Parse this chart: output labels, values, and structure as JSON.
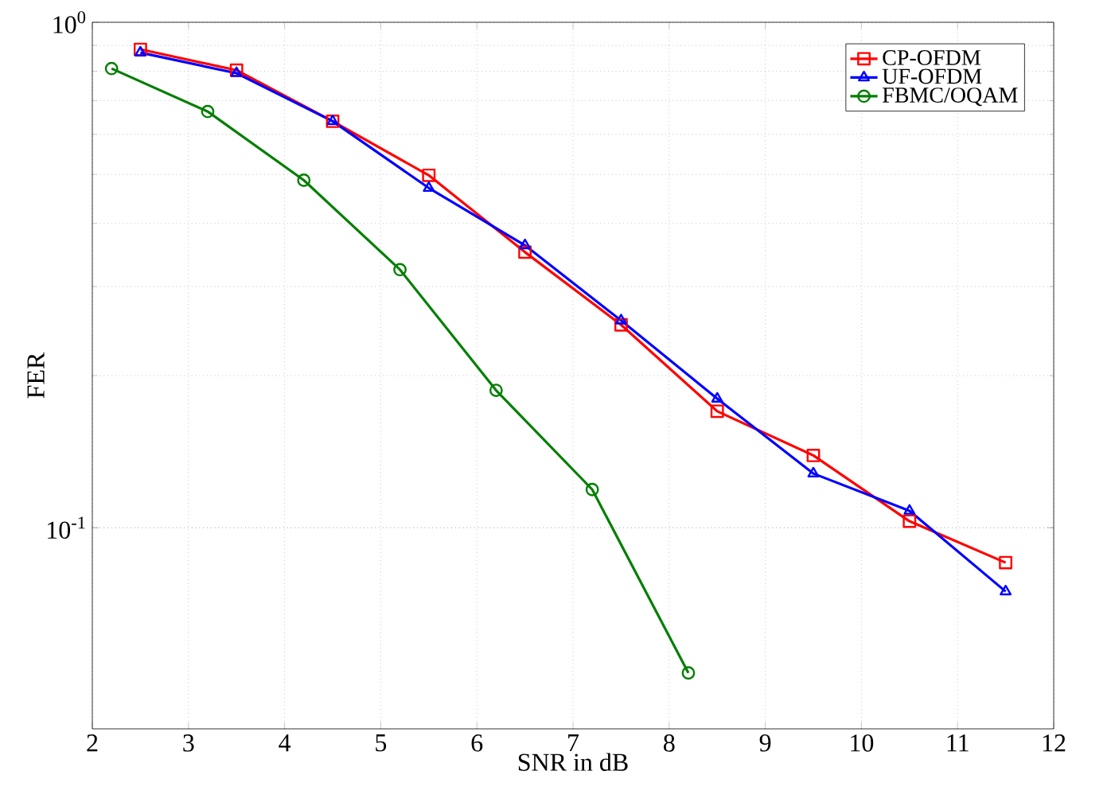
{
  "chart_data": {
    "type": "line",
    "xlabel": "SNR in dB",
    "ylabel": "FER",
    "log": "y",
    "grid": true,
    "legend": "top right",
    "line_style": "solid",
    "xlim": [
      2,
      12
    ],
    "xticks": [
      2,
      3,
      4,
      5,
      6,
      7,
      8,
      9,
      10,
      11,
      12
    ],
    "ylim": [
      0.04,
      1
    ],
    "yticks": [
      {
        "value": 0.1,
        "label": "10$^{-1}$"
      },
      {
        "value": 1,
        "label": "10$^{0}$"
      }
    ],
    "series": [
      {
        "name": "CP-OFDM",
        "color": "#ff0000",
        "marker": "square",
        "x": [
          2.5,
          3.5,
          4.5,
          5.5,
          6.5,
          7.5,
          8.5,
          9.5,
          10.5,
          11.5
        ],
        "values": [
          0.884,
          0.804,
          0.637,
          0.498,
          0.351,
          0.252,
          0.17,
          0.139,
          0.103,
          0.0853
        ]
      },
      {
        "name": "UF-OFDM",
        "color": "#0000ff",
        "marker": "triangle",
        "x": [
          2.5,
          3.5,
          4.5,
          5.5,
          6.5,
          7.5,
          8.5,
          9.5,
          10.5,
          11.5
        ],
        "values": [
          0.871,
          0.793,
          0.637,
          0.47,
          0.362,
          0.257,
          0.18,
          0.128,
          0.108,
          0.0748
        ]
      },
      {
        "name": "FBMC/OQAM",
        "color": "#007f00",
        "marker": "circle",
        "x": [
          2.2,
          3.2,
          4.2,
          5.2,
          6.2,
          7.2,
          8.2
        ],
        "values": [
          0.81,
          0.666,
          0.487,
          0.324,
          0.187,
          0.119,
          0.0516
        ]
      }
    ]
  }
}
